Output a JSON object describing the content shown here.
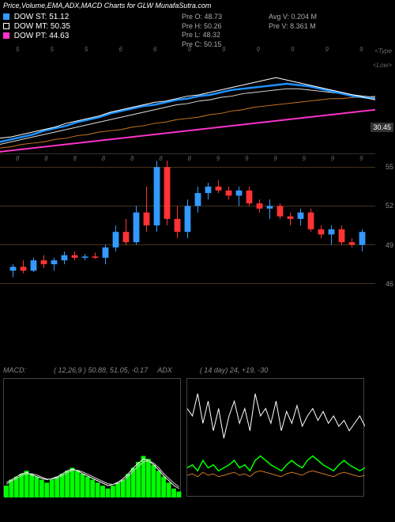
{
  "title": "Price,Volume,EMA,ADX,MACD Charts for GLW MunafaSutra.com",
  "legend": {
    "st": {
      "label": "DOW ST:",
      "value": "51.12",
      "color": "#3399ff"
    },
    "mt": {
      "label": "DOW MT:",
      "value": "50.35",
      "color": "#ffffff"
    },
    "pt": {
      "label": "DOW PT:",
      "value": "44.63",
      "color": "#ff33cc"
    }
  },
  "stats_left": {
    "o": "Pre  O: 48.73",
    "h": "Pre  H: 50.26",
    "l": "Pre  L: 48.32",
    "c": "Pre  C: 50.15"
  },
  "stats_right": {
    "avgv": "Avg V: 0.204  M",
    "prev": "Pre  V: 8.361 M"
  },
  "price": {
    "ylim": [
      26,
      34
    ],
    "highlight_y": 30.45,
    "highlight_label": "30.45",
    "lines": {
      "blue_thick": {
        "color": "#1e90ff",
        "width": 2.5,
        "y": [
          27.0,
          27.2,
          27.4,
          27.6,
          27.9,
          28.1,
          28.3,
          28.6,
          28.8,
          29.0,
          29.3,
          29.5,
          29.7,
          29.9,
          30.0,
          30.2,
          30.4,
          30.5,
          30.7,
          30.8,
          31.0,
          31.2,
          31.3,
          31.4,
          31.5,
          31.6,
          31.7,
          31.6,
          31.5,
          31.3,
          31.1,
          30.9,
          30.7,
          30.6,
          30.5
        ]
      },
      "white1": {
        "color": "#ffffff",
        "width": 1,
        "y": [
          27.3,
          27.4,
          27.6,
          27.8,
          28.0,
          28.2,
          28.5,
          28.7,
          28.9,
          29.1,
          29.4,
          29.6,
          29.8,
          30.0,
          30.2,
          30.3,
          30.5,
          30.7,
          30.8,
          31.0,
          31.2,
          31.4,
          31.6,
          31.8,
          32.0,
          32.2,
          32.0,
          31.8,
          31.6,
          31.4,
          31.2,
          31.0,
          30.8,
          30.6,
          30.4
        ]
      },
      "white2": {
        "color": "#dddddd",
        "width": 1,
        "y": [
          26.8,
          27.0,
          27.2,
          27.4,
          27.6,
          27.8,
          28.0,
          28.2,
          28.4,
          28.6,
          28.8,
          29.0,
          29.2,
          29.4,
          29.6,
          29.8,
          30.0,
          30.1,
          30.3,
          30.4,
          30.6,
          30.7,
          30.9,
          31.0,
          31.1,
          31.2,
          31.3,
          31.3,
          31.2,
          31.1,
          31.0,
          30.9,
          30.8,
          30.7,
          30.6
        ]
      },
      "orange": {
        "color": "#cc7722",
        "width": 1,
        "y": [
          26.5,
          26.6,
          26.8,
          26.9,
          27.0,
          27.2,
          27.3,
          27.5,
          27.6,
          27.8,
          27.9,
          28.0,
          28.2,
          28.3,
          28.5,
          28.6,
          28.8,
          28.9,
          29.0,
          29.2,
          29.3,
          29.5,
          29.6,
          29.8,
          29.9,
          30.0,
          30.1,
          30.2,
          30.3,
          30.4,
          30.5,
          30.5,
          30.6,
          30.6,
          30.7
        ]
      },
      "magenta": {
        "color": "#ff33cc",
        "width": 2,
        "y": [
          26.2,
          26.3,
          26.4,
          26.5,
          26.6,
          26.7,
          26.8,
          26.9,
          27.0,
          27.1,
          27.2,
          27.3,
          27.4,
          27.5,
          27.6,
          27.7,
          27.8,
          27.9,
          28.0,
          28.1,
          28.2,
          28.3,
          28.4,
          28.5,
          28.6,
          28.7,
          28.8,
          28.9,
          29.0,
          29.1,
          29.2,
          29.3,
          29.4,
          29.5,
          29.6
        ]
      }
    },
    "top_ticks": [
      "5",
      "5",
      "5",
      "6",
      "6",
      "9",
      "9",
      "9",
      "9",
      "9",
      "9"
    ],
    "candle_top_ticks": [
      "8",
      "8",
      "8",
      "8",
      "8",
      "8",
      "8",
      "9",
      "9",
      "9",
      "9",
      "9",
      "9"
    ],
    "top_right_label": "<Type",
    "bottom_right_label": "<Low>"
  },
  "candle": {
    "ylim": [
      45,
      56
    ],
    "ylines": [
      46,
      49,
      52,
      55
    ],
    "bars": [
      {
        "o": 47.0,
        "h": 47.5,
        "l": 46.5,
        "c": 47.3,
        "up": true
      },
      {
        "o": 47.3,
        "h": 47.8,
        "l": 46.8,
        "c": 47.0,
        "up": false
      },
      {
        "o": 47.0,
        "h": 48.0,
        "l": 46.9,
        "c": 47.8,
        "up": true
      },
      {
        "o": 47.8,
        "h": 48.2,
        "l": 47.2,
        "c": 47.5,
        "up": false
      },
      {
        "o": 47.5,
        "h": 48.0,
        "l": 47.0,
        "c": 47.8,
        "up": true
      },
      {
        "o": 47.8,
        "h": 48.5,
        "l": 47.5,
        "c": 48.2,
        "up": true
      },
      {
        "o": 48.2,
        "h": 48.5,
        "l": 47.8,
        "c": 48.0,
        "up": false
      },
      {
        "o": 48.0,
        "h": 48.3,
        "l": 47.8,
        "c": 48.1,
        "up": true
      },
      {
        "o": 48.1,
        "h": 48.4,
        "l": 47.9,
        "c": 48.0,
        "up": false
      },
      {
        "o": 48.0,
        "h": 49.0,
        "l": 47.5,
        "c": 48.8,
        "up": true
      },
      {
        "o": 48.8,
        "h": 50.5,
        "l": 48.5,
        "c": 50.0,
        "up": true
      },
      {
        "o": 50.0,
        "h": 51.0,
        "l": 49.0,
        "c": 49.2,
        "up": false
      },
      {
        "o": 49.2,
        "h": 52.0,
        "l": 49.0,
        "c": 51.5,
        "up": true
      },
      {
        "o": 51.5,
        "h": 53.5,
        "l": 50.0,
        "c": 50.5,
        "up": false
      },
      {
        "o": 50.5,
        "h": 55.5,
        "l": 50.0,
        "c": 55.0,
        "up": true
      },
      {
        "o": 55.0,
        "h": 55.5,
        "l": 50.5,
        "c": 51.0,
        "up": false
      },
      {
        "o": 51.0,
        "h": 52.0,
        "l": 49.5,
        "c": 50.0,
        "up": false
      },
      {
        "o": 50.0,
        "h": 52.5,
        "l": 49.5,
        "c": 52.0,
        "up": true
      },
      {
        "o": 52.0,
        "h": 53.5,
        "l": 51.5,
        "c": 53.0,
        "up": true
      },
      {
        "o": 53.0,
        "h": 53.8,
        "l": 52.5,
        "c": 53.5,
        "up": true
      },
      {
        "o": 53.5,
        "h": 54.0,
        "l": 53.0,
        "c": 53.2,
        "up": false
      },
      {
        "o": 53.2,
        "h": 53.5,
        "l": 52.5,
        "c": 52.8,
        "up": false
      },
      {
        "o": 52.8,
        "h": 53.5,
        "l": 52.0,
        "c": 53.2,
        "up": true
      },
      {
        "o": 53.2,
        "h": 53.5,
        "l": 52.0,
        "c": 52.2,
        "up": false
      },
      {
        "o": 52.2,
        "h": 52.5,
        "l": 51.5,
        "c": 51.8,
        "up": false
      },
      {
        "o": 51.8,
        "h": 52.5,
        "l": 51.0,
        "c": 52.0,
        "up": true
      },
      {
        "o": 52.0,
        "h": 52.2,
        "l": 51.0,
        "c": 51.2,
        "up": false
      },
      {
        "o": 51.2,
        "h": 51.5,
        "l": 50.5,
        "c": 51.0,
        "up": false
      },
      {
        "o": 51.0,
        "h": 51.8,
        "l": 50.5,
        "c": 51.5,
        "up": true
      },
      {
        "o": 51.5,
        "h": 51.8,
        "l": 50.0,
        "c": 50.2,
        "up": false
      },
      {
        "o": 50.2,
        "h": 50.5,
        "l": 49.5,
        "c": 49.8,
        "up": false
      },
      {
        "o": 49.8,
        "h": 50.5,
        "l": 49.0,
        "c": 50.2,
        "up": true
      },
      {
        "o": 50.2,
        "h": 50.5,
        "l": 49.0,
        "c": 49.2,
        "up": false
      },
      {
        "o": 49.2,
        "h": 49.5,
        "l": 48.8,
        "c": 49.0,
        "up": false
      },
      {
        "o": 49.0,
        "h": 50.2,
        "l": 48.5,
        "c": 50.0,
        "up": true
      }
    ]
  },
  "macd": {
    "label": "MACD:",
    "params": "( 12,26,9 ) 50.88,  51.05,  -0.17",
    "hist_color": "#00ff00",
    "line1_color": "#ffffff",
    "line2_color": "#cccccc",
    "hist": [
      0.2,
      0.3,
      0.35,
      0.4,
      0.45,
      0.4,
      0.35,
      0.3,
      0.25,
      0.3,
      0.35,
      0.4,
      0.45,
      0.5,
      0.45,
      0.4,
      0.35,
      0.3,
      0.25,
      0.2,
      0.15,
      0.2,
      0.25,
      0.3,
      0.4,
      0.5,
      0.6,
      0.7,
      0.65,
      0.55,
      0.45,
      0.35,
      0.25,
      0.15,
      0.1
    ],
    "line1": [
      0.25,
      0.3,
      0.35,
      0.4,
      0.42,
      0.38,
      0.35,
      0.32,
      0.3,
      0.32,
      0.35,
      0.4,
      0.45,
      0.48,
      0.45,
      0.4,
      0.36,
      0.32,
      0.28,
      0.24,
      0.2,
      0.22,
      0.26,
      0.32,
      0.4,
      0.5,
      0.58,
      0.65,
      0.62,
      0.55,
      0.46,
      0.36,
      0.28,
      0.2,
      0.15
    ],
    "line2": [
      0.22,
      0.28,
      0.32,
      0.37,
      0.4,
      0.4,
      0.38,
      0.34,
      0.31,
      0.31,
      0.33,
      0.37,
      0.42,
      0.46,
      0.46,
      0.43,
      0.39,
      0.35,
      0.31,
      0.27,
      0.23,
      0.22,
      0.24,
      0.29,
      0.36,
      0.45,
      0.53,
      0.6,
      0.62,
      0.58,
      0.5,
      0.4,
      0.32,
      0.24,
      0.18
    ]
  },
  "adx": {
    "label": "ADX",
    "params": "( 14   day) 24,  +19,  -30",
    "white": [
      60,
      55,
      70,
      50,
      65,
      45,
      60,
      40,
      55,
      65,
      50,
      60,
      45,
      70,
      55,
      60,
      50,
      65,
      45,
      58,
      50,
      62,
      48,
      55,
      60,
      52,
      58,
      50,
      55,
      48,
      52,
      45,
      50,
      55,
      48
    ],
    "green": [
      20,
      22,
      18,
      25,
      20,
      22,
      18,
      20,
      22,
      25,
      20,
      22,
      18,
      25,
      28,
      25,
      22,
      20,
      18,
      22,
      25,
      22,
      20,
      25,
      28,
      25,
      22,
      20,
      18,
      22,
      25,
      22,
      20,
      18,
      20
    ],
    "orange": [
      15,
      16,
      14,
      17,
      15,
      16,
      14,
      15,
      16,
      17,
      15,
      16,
      14,
      17,
      18,
      17,
      16,
      15,
      14,
      16,
      17,
      16,
      15,
      17,
      18,
      17,
      16,
      15,
      14,
      16,
      17,
      16,
      15,
      14,
      15
    ],
    "white_color": "#ffffff",
    "green_color": "#00ff00",
    "orange_color": "#cc7722"
  }
}
